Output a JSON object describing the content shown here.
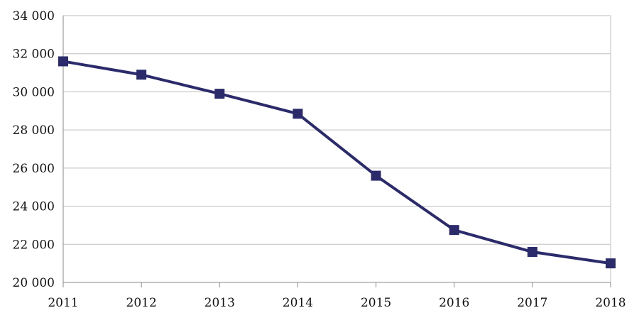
{
  "chart_data": {
    "type": "line",
    "title": "",
    "xlabel": "",
    "ylabel": "",
    "x": [
      "2011",
      "2012",
      "2013",
      "2014",
      "2015",
      "2016",
      "2017",
      "2018"
    ],
    "series": [
      {
        "values": [
          31600,
          30900,
          29900,
          28850,
          25600,
          22750,
          21600,
          21000
        ]
      }
    ],
    "ylim": [
      20000,
      34000
    ],
    "yticks": [
      20000,
      22000,
      24000,
      26000,
      28000,
      30000,
      32000,
      34000
    ],
    "ytick_labels": [
      "20 000",
      "22 000",
      "24 000",
      "26 000",
      "28 000",
      "30 000",
      "32 000",
      "34 000"
    ],
    "grid": true,
    "line_color": "#2b2b6b",
    "marker": "square",
    "grid_color": "#bdbdbd"
  }
}
